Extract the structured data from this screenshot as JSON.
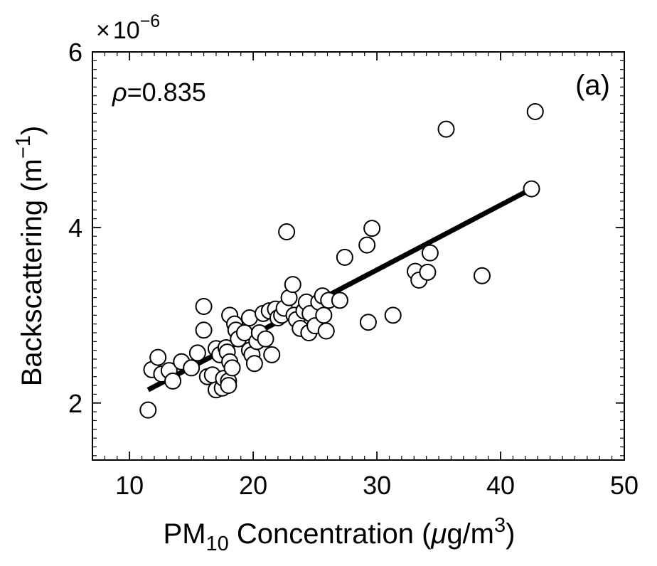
{
  "chart_data": {
    "type": "scatter",
    "panel_label": "(a)",
    "correlation_symbol": "ρ",
    "correlation_text": "=0.835",
    "xlabel": {
      "prefix": "PM",
      "subscript": "10",
      "middle": " Concentration (",
      "mu": "μ",
      "unit": "g/m",
      "superscript": "3",
      "suffix": ")"
    },
    "ylabel": {
      "main": "Backscattering (m",
      "superscript": "−1",
      "suffix": ")"
    },
    "y_multiplier": {
      "times": "×",
      "base": "10",
      "exponent": "−6"
    },
    "xlim": [
      7,
      50
    ],
    "ylim": [
      1.35,
      6
    ],
    "xticks": [
      10,
      20,
      30,
      40,
      50
    ],
    "yticks": [
      2,
      4,
      6
    ],
    "y_scale_factor": 1e-06,
    "fit_line": {
      "x": [
        11.5,
        42.5
      ],
      "y": [
        2.15,
        4.44
      ]
    },
    "points": [
      [
        11.5,
        1.92
      ],
      [
        11.8,
        2.38
      ],
      [
        12.3,
        2.52
      ],
      [
        12.6,
        2.33
      ],
      [
        13.2,
        2.37
      ],
      [
        13.5,
        2.25
      ],
      [
        14.2,
        2.47
      ],
      [
        15.0,
        2.4
      ],
      [
        15.5,
        2.57
      ],
      [
        16.0,
        3.1
      ],
      [
        16.0,
        2.83
      ],
      [
        16.3,
        2.3
      ],
      [
        16.7,
        2.32
      ],
      [
        17.0,
        2.62
      ],
      [
        17.0,
        2.15
      ],
      [
        17.3,
        2.55
      ],
      [
        17.5,
        2.17
      ],
      [
        17.6,
        2.28
      ],
      [
        17.8,
        2.63
      ],
      [
        17.9,
        2.58
      ],
      [
        18.0,
        2.25
      ],
      [
        18.0,
        2.2
      ],
      [
        18.1,
        3.0
      ],
      [
        18.1,
        2.47
      ],
      [
        18.3,
        2.4
      ],
      [
        18.5,
        2.9
      ],
      [
        18.6,
        2.83
      ],
      [
        18.8,
        2.73
      ],
      [
        19.3,
        2.8
      ],
      [
        19.7,
        2.97
      ],
      [
        19.7,
        2.6
      ],
      [
        19.9,
        2.55
      ],
      [
        20.1,
        2.45
      ],
      [
        20.3,
        2.7
      ],
      [
        20.5,
        2.8
      ],
      [
        20.8,
        3.02
      ],
      [
        21.0,
        2.73
      ],
      [
        21.3,
        3.05
      ],
      [
        21.5,
        2.55
      ],
      [
        21.8,
        3.07
      ],
      [
        22.0,
        2.97
      ],
      [
        22.3,
        3.0
      ],
      [
        22.5,
        3.08
      ],
      [
        22.7,
        3.95
      ],
      [
        22.9,
        3.2
      ],
      [
        23.2,
        3.35
      ],
      [
        23.3,
        3.0
      ],
      [
        23.5,
        2.95
      ],
      [
        23.8,
        2.85
      ],
      [
        24.1,
        3.05
      ],
      [
        24.3,
        3.15
      ],
      [
        24.5,
        2.8
      ],
      [
        24.6,
        3.02
      ],
      [
        25.0,
        2.88
      ],
      [
        25.3,
        3.15
      ],
      [
        25.6,
        3.22
      ],
      [
        25.7,
        3.0
      ],
      [
        25.9,
        2.82
      ],
      [
        26.1,
        3.17
      ],
      [
        27.0,
        3.17
      ],
      [
        27.4,
        3.66
      ],
      [
        29.2,
        3.8
      ],
      [
        29.3,
        2.92
      ],
      [
        29.6,
        3.99
      ],
      [
        31.3,
        3.0
      ],
      [
        33.1,
        3.5
      ],
      [
        33.4,
        3.4
      ],
      [
        34.1,
        3.49
      ],
      [
        34.3,
        3.71
      ],
      [
        35.6,
        5.12
      ],
      [
        38.5,
        3.45
      ],
      [
        42.5,
        4.44
      ],
      [
        42.8,
        5.32
      ]
    ]
  }
}
